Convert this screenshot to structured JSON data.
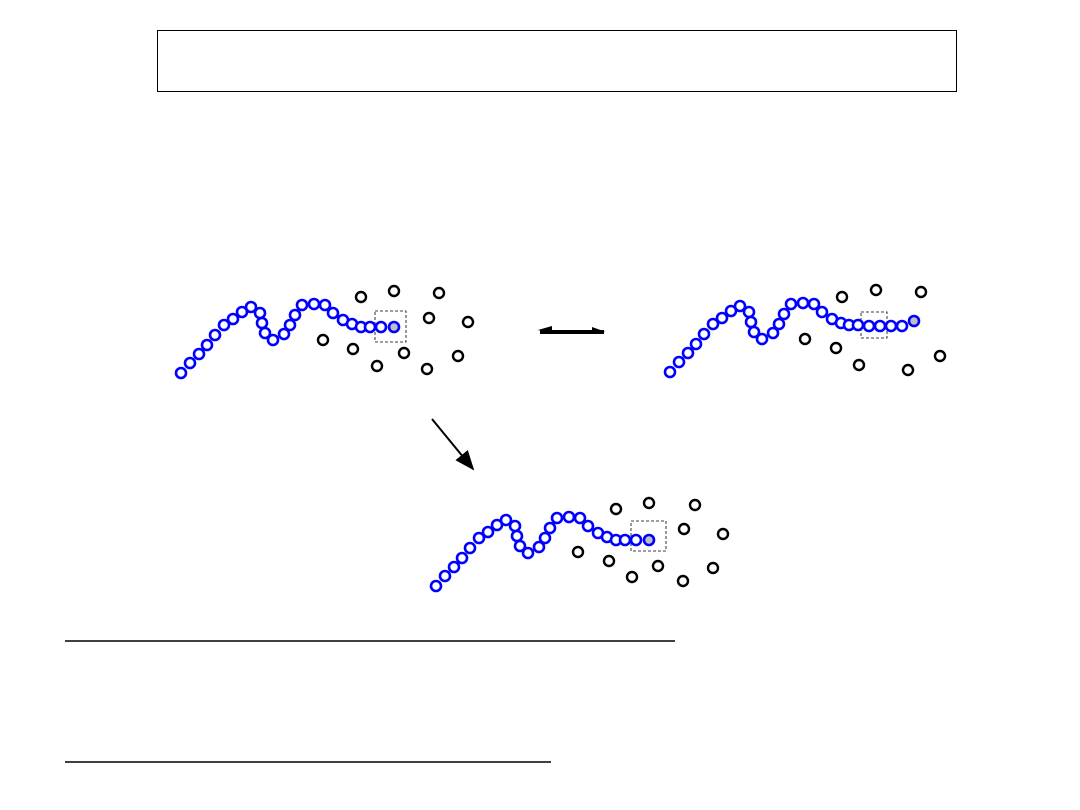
{
  "title": "",
  "colors": {
    "chain_bead": "#0000ff",
    "active_bead_fill": "#c0c0c0",
    "free_particle": "#000000",
    "background": "#ffffff"
  },
  "panels": [
    {
      "name": "state-before",
      "chain_beads": 26,
      "free_particles": 11
    },
    {
      "name": "state-after-reversible",
      "chain_beads": 29,
      "free_particles": 8
    },
    {
      "name": "state-after-branch",
      "chain_beads": 26,
      "free_particles": 11
    }
  ],
  "arrows": [
    {
      "name": "reversible-arrow",
      "type": "double-harpoon"
    },
    {
      "name": "transition-arrow",
      "type": "single"
    }
  ]
}
